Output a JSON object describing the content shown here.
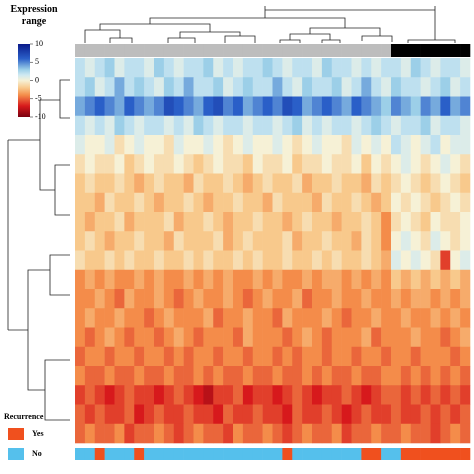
{
  "chart_data": {
    "type": "heatmap",
    "colorbar": {
      "title": "Expression range",
      "lim": [
        -10,
        10
      ],
      "ticks": [
        10,
        5,
        0,
        -5,
        -10
      ],
      "colorscale": [
        [
          -10,
          "#7a0010"
        ],
        [
          -7,
          "#d7191c"
        ],
        [
          -4,
          "#f48c4a"
        ],
        [
          -2,
          "#f8c98c"
        ],
        [
          0,
          "#f6f1d6"
        ],
        [
          1.5,
          "#cfe9f2"
        ],
        [
          3,
          "#9ccfe8"
        ],
        [
          6,
          "#2a5fc8"
        ],
        [
          10,
          "#0a1a8a"
        ]
      ]
    },
    "clusters": {
      "colors": [
        "#bdbdbd",
        "#000000"
      ],
      "columns": [
        0,
        0,
        0,
        0,
        0,
        0,
        0,
        0,
        0,
        0,
        0,
        0,
        0,
        0,
        0,
        0,
        0,
        0,
        0,
        0,
        0,
        0,
        0,
        0,
        0,
        0,
        0,
        0,
        0,
        0,
        0,
        0,
        1,
        1,
        1,
        1,
        1,
        1,
        1,
        1
      ]
    },
    "recurrence": {
      "title": "Recurrence",
      "legend": [
        {
          "name": "Yes",
          "color": "#f0501e"
        },
        {
          "name": "No",
          "color": "#55c0ec"
        }
      ],
      "columns": [
        1,
        1,
        0,
        1,
        1,
        1,
        0,
        1,
        1,
        1,
        1,
        1,
        1,
        1,
        1,
        1,
        1,
        1,
        1,
        1,
        1,
        0,
        1,
        1,
        1,
        1,
        1,
        1,
        1,
        0,
        0,
        1,
        1,
        0,
        0,
        0,
        0,
        0,
        0,
        0
      ]
    },
    "values": [
      [
        2,
        1,
        2,
        3,
        1,
        2,
        2,
        1,
        3,
        2,
        1,
        2,
        2,
        3,
        1,
        2,
        1,
        2,
        2,
        3,
        2,
        1,
        2,
        2,
        1,
        3,
        2,
        2,
        1,
        2,
        1,
        2,
        2,
        1,
        3,
        2,
        1,
        2,
        2,
        1
      ],
      [
        2,
        3,
        1,
        2,
        4,
        2,
        3,
        2,
        1,
        3,
        2,
        4,
        2,
        2,
        3,
        1,
        2,
        3,
        2,
        2,
        4,
        2,
        1,
        3,
        2,
        2,
        3,
        1,
        2,
        4,
        2,
        1,
        3,
        2,
        2,
        1,
        2,
        3,
        1,
        2
      ],
      [
        4,
        5,
        6,
        5,
        4,
        6,
        5,
        4,
        5,
        7,
        6,
        5,
        4,
        6,
        7,
        5,
        6,
        4,
        5,
        6,
        5,
        7,
        6,
        4,
        5,
        6,
        5,
        4,
        6,
        5,
        4,
        3,
        5,
        4,
        3,
        5,
        4,
        6,
        4,
        5
      ],
      [
        2,
        1,
        2,
        1,
        3,
        2,
        1,
        2,
        2,
        1,
        2,
        1,
        3,
        2,
        1,
        2,
        2,
        1,
        2,
        2,
        1,
        2,
        3,
        1,
        2,
        1,
        2,
        2,
        1,
        2,
        3,
        2,
        1,
        2,
        2,
        3,
        1,
        2,
        2,
        1
      ],
      [
        1,
        0,
        0,
        1,
        -1,
        0,
        1,
        0,
        0,
        -1,
        1,
        0,
        0,
        1,
        0,
        -1,
        0,
        1,
        0,
        0,
        1,
        0,
        -1,
        0,
        1,
        0,
        0,
        -1,
        1,
        0,
        1,
        0,
        2,
        1,
        0,
        1,
        2,
        0,
        1,
        1
      ],
      [
        -1,
        0,
        -1,
        -1,
        0,
        -2,
        -1,
        0,
        -1,
        -1,
        0,
        -1,
        -2,
        -1,
        0,
        -1,
        -1,
        -2,
        0,
        -1,
        -1,
        0,
        -2,
        -1,
        -1,
        0,
        -1,
        -1,
        0,
        -2,
        0,
        -1,
        0,
        1,
        0,
        -1,
        0,
        1,
        0,
        -1
      ],
      [
        -2,
        -1,
        -2,
        -2,
        -1,
        -2,
        -3,
        -2,
        -1,
        -2,
        -2,
        -3,
        -1,
        -2,
        -2,
        -1,
        -2,
        -3,
        -2,
        -1,
        -2,
        -2,
        -1,
        -3,
        -2,
        -2,
        -1,
        -2,
        -2,
        -3,
        -1,
        -2,
        -1,
        0,
        -1,
        -2,
        -1,
        0,
        -1,
        -2
      ],
      [
        -2,
        -2,
        -3,
        -1,
        -2,
        -2,
        -1,
        -2,
        -3,
        -2,
        -2,
        -1,
        -2,
        -3,
        -2,
        -2,
        -1,
        -2,
        -2,
        -3,
        -1,
        -2,
        -2,
        -2,
        -3,
        -1,
        -2,
        -2,
        -1,
        -2,
        -3,
        -2,
        0,
        -1,
        0,
        -1,
        -2,
        -1,
        0,
        -1
      ],
      [
        -2,
        -3,
        -2,
        -2,
        -1,
        -3,
        -2,
        -2,
        -2,
        -1,
        -3,
        -2,
        -2,
        -1,
        -2,
        -3,
        -2,
        -2,
        -1,
        -2,
        -2,
        -3,
        -2,
        -1,
        -2,
        -2,
        -3,
        -2,
        -2,
        -1,
        -2,
        -4,
        -1,
        0,
        -1,
        -2,
        0,
        -1,
        -1,
        0
      ],
      [
        -2,
        -1,
        -2,
        -3,
        -2,
        -2,
        -1,
        -2,
        -2,
        -3,
        -1,
        -2,
        -2,
        -2,
        -1,
        -3,
        -2,
        -1,
        -2,
        -2,
        -2,
        -1,
        -3,
        -2,
        -2,
        -1,
        -2,
        -2,
        -3,
        -1,
        -2,
        -4,
        0,
        1,
        0,
        -1,
        1,
        0,
        -1,
        0
      ],
      [
        -1,
        -2,
        -2,
        -1,
        -2,
        -1,
        -2,
        -2,
        -1,
        -2,
        -2,
        -1,
        -2,
        -1,
        -2,
        -2,
        -1,
        -2,
        -1,
        -2,
        -2,
        -1,
        -2,
        -2,
        -1,
        -2,
        -1,
        -2,
        -2,
        -1,
        -2,
        -3,
        1,
        0,
        1,
        0,
        -1,
        -6,
        0,
        1
      ],
      [
        -4,
        -3,
        -4,
        -3,
        -4,
        -4,
        -3,
        -4,
        -3,
        -4,
        -4,
        -3,
        -4,
        -3,
        -4,
        -3,
        -4,
        -4,
        -3,
        -4,
        -3,
        -4,
        -4,
        -3,
        -4,
        -3,
        -3,
        -4,
        -3,
        -4,
        -3,
        -4,
        -2,
        -3,
        -2,
        -3,
        -2,
        -3,
        -2,
        -3
      ],
      [
        -4,
        -4,
        -3,
        -4,
        -5,
        -3,
        -4,
        -4,
        -3,
        -4,
        -5,
        -4,
        -3,
        -4,
        -4,
        -3,
        -4,
        -5,
        -4,
        -3,
        -4,
        -4,
        -3,
        -5,
        -4,
        -4,
        -3,
        -4,
        -4,
        -3,
        -4,
        -4,
        -3,
        -4,
        -3,
        -3,
        -4,
        -3,
        -4,
        -3
      ],
      [
        -4,
        -3,
        -4,
        -4,
        -3,
        -4,
        -4,
        -5,
        -4,
        -3,
        -4,
        -4,
        -4,
        -3,
        -5,
        -4,
        -4,
        -3,
        -4,
        -4,
        -5,
        -3,
        -4,
        -4,
        -4,
        -3,
        -4,
        -5,
        -4,
        -4,
        -3,
        -4,
        -4,
        -3,
        -4,
        -4,
        -3,
        -4,
        -3,
        -4
      ],
      [
        -4,
        -5,
        -4,
        -3,
        -4,
        -5,
        -4,
        -4,
        -5,
        -4,
        -3,
        -4,
        -5,
        -4,
        -4,
        -4,
        -5,
        -3,
        -4,
        -4,
        -4,
        -5,
        -4,
        -3,
        -4,
        -5,
        -4,
        -4,
        -4,
        -3,
        -5,
        -4,
        -4,
        -4,
        -3,
        -4,
        -4,
        -5,
        -4,
        -3
      ],
      [
        -5,
        -4,
        -4,
        -5,
        -4,
        -4,
        -5,
        -4,
        -4,
        -5,
        -4,
        -5,
        -4,
        -4,
        -5,
        -4,
        -4,
        -5,
        -4,
        -4,
        -5,
        -4,
        -5,
        -4,
        -4,
        -5,
        -4,
        -4,
        -5,
        -4,
        -4,
        -5,
        -4,
        -4,
        -5,
        -4,
        -4,
        -4,
        -5,
        -4
      ],
      [
        -4,
        -5,
        -5,
        -4,
        -5,
        -5,
        -4,
        -5,
        -5,
        -4,
        -5,
        -5,
        -4,
        -5,
        -4,
        -5,
        -5,
        -4,
        -5,
        -5,
        -4,
        -5,
        -5,
        -4,
        -5,
        -4,
        -5,
        -5,
        -4,
        -5,
        -5,
        -4,
        -4,
        -5,
        -4,
        -5,
        -4,
        -5,
        -4,
        -5
      ],
      [
        -6,
        -5,
        -6,
        -7,
        -6,
        -5,
        -6,
        -6,
        -7,
        -6,
        -5,
        -6,
        -7,
        -8,
        -6,
        -6,
        -5,
        -7,
        -6,
        -6,
        -7,
        -6,
        -5,
        -6,
        -7,
        -6,
        -6,
        -5,
        -6,
        -7,
        -6,
        -5,
        -5,
        -6,
        -5,
        -6,
        -5,
        -6,
        -5,
        -6
      ],
      [
        -5,
        -6,
        -5,
        -6,
        -6,
        -5,
        -7,
        -6,
        -5,
        -6,
        -6,
        -5,
        -6,
        -6,
        -7,
        -5,
        -6,
        -6,
        -5,
        -6,
        -6,
        -7,
        -5,
        -6,
        -6,
        -5,
        -6,
        -7,
        -6,
        -5,
        -6,
        -6,
        -5,
        -6,
        -6,
        -5,
        -6,
        -5,
        -6,
        -5
      ],
      [
        -5,
        -4,
        -5,
        -5,
        -4,
        -6,
        -5,
        -5,
        -4,
        -5,
        -6,
        -5,
        -4,
        -5,
        -5,
        -6,
        -4,
        -5,
        -5,
        -4,
        -5,
        -6,
        -5,
        -4,
        -5,
        -5,
        -4,
        -6,
        -5,
        -5,
        -4,
        -5,
        -5,
        -4,
        -5,
        -5,
        -6,
        -5,
        -4,
        -5
      ]
    ]
  }
}
